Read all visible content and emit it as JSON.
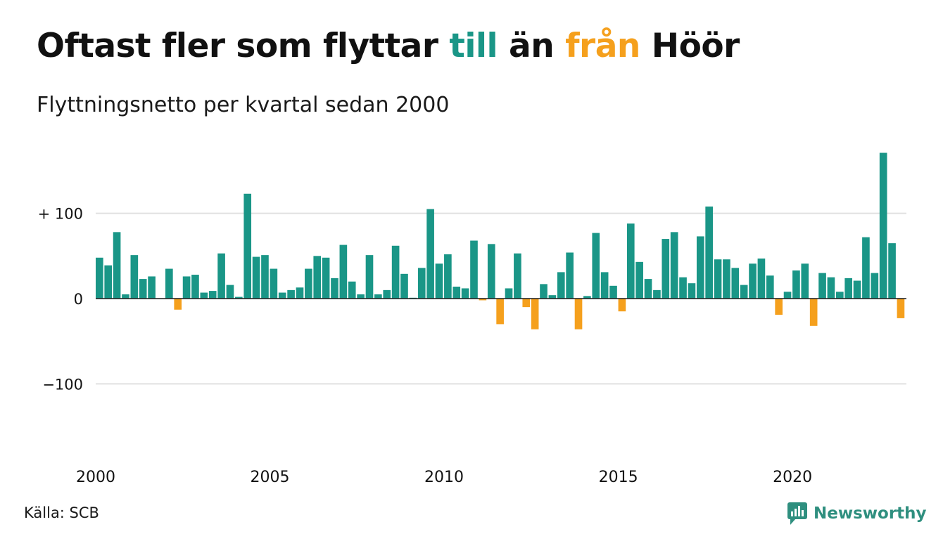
{
  "title": {
    "part1": "Oftast fler som flyttar ",
    "highlight_to": "till",
    "part2": " än ",
    "highlight_from": "från",
    "part3": " Höör"
  },
  "subtitle": "Flyttningsnetto per kvartal sedan 2000",
  "source": "Källa: SCB",
  "brand": "Newsworthy",
  "colors": {
    "positive": "#1a9687",
    "negative": "#f5a01d",
    "grid": "#e0e0e0",
    "text": "#111111",
    "brand": "#2f8f7f"
  },
  "chart_data": {
    "type": "bar",
    "ylim": [
      -150,
      175
    ],
    "yticks": [
      {
        "value": 100,
        "label": "+ 100"
      },
      {
        "value": 0,
        "label": "0"
      },
      {
        "value": -100,
        "label": "−100"
      }
    ],
    "xticks": [
      {
        "quarter_index": 0,
        "label": "2000"
      },
      {
        "quarter_index": 20,
        "label": "2005"
      },
      {
        "quarter_index": 40,
        "label": "2010"
      },
      {
        "quarter_index": 60,
        "label": "2015"
      },
      {
        "quarter_index": 80,
        "label": "2020"
      }
    ],
    "start": "2000 Q1",
    "values": [
      48,
      39,
      78,
      5,
      51,
      23,
      26,
      0,
      35,
      -13,
      26,
      28,
      7,
      9,
      53,
      16,
      2,
      123,
      49,
      51,
      35,
      7,
      10,
      13,
      35,
      50,
      48,
      24,
      63,
      20,
      5,
      51,
      5,
      10,
      62,
      29,
      1,
      36,
      105,
      41,
      52,
      14,
      12,
      68,
      -2,
      64,
      -30,
      12,
      53,
      -10,
      -36,
      17,
      4,
      31,
      54,
      -36,
      3,
      77,
      31,
      15,
      -15,
      88,
      43,
      23,
      10,
      70,
      78,
      25,
      18,
      73,
      108,
      46,
      46,
      36,
      16,
      41,
      47,
      27,
      -19,
      8,
      33,
      41,
      -32,
      30,
      25,
      8,
      24,
      21,
      72,
      30,
      171,
      65,
      -23
    ]
  }
}
